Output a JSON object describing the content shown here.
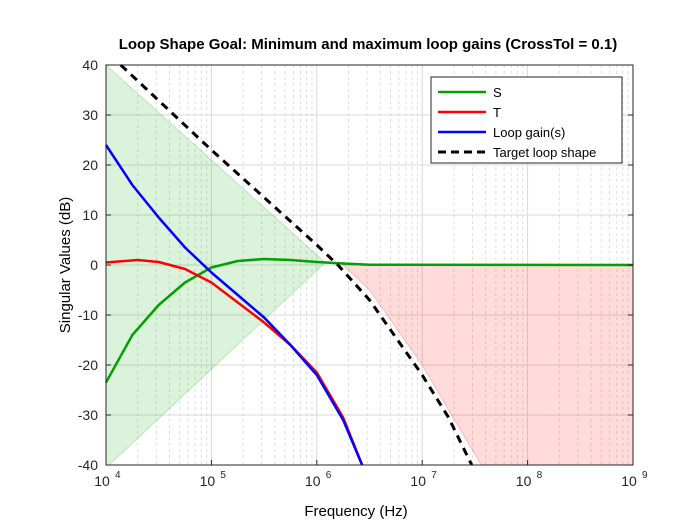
{
  "chart_data": {
    "type": "line",
    "title": "Loop Shape Goal: Minimum and maximum loop gains (CrossTol = 0.1)",
    "xlabel": "Frequency (Hz)",
    "ylabel": "Singular Values (dB)",
    "xscale": "log",
    "xlim": [
      10000,
      1000000000
    ],
    "ylim": [
      -40,
      40
    ],
    "grid": true,
    "xticks": [
      {
        "v": 4,
        "label": "10",
        "exp": "4"
      },
      {
        "v": 5,
        "label": "10",
        "exp": "5"
      },
      {
        "v": 6,
        "label": "10",
        "exp": "6"
      },
      {
        "v": 7,
        "label": "10",
        "exp": "7"
      },
      {
        "v": 8,
        "label": "10",
        "exp": "8"
      },
      {
        "v": 9,
        "label": "10",
        "exp": "9"
      }
    ],
    "yticks": [
      -40,
      -30,
      -20,
      -10,
      0,
      10,
      20,
      30,
      40
    ],
    "legend_position": "top-right",
    "series": [
      {
        "name": "S",
        "color": "#00a000",
        "style": "solid",
        "log10x": [
          4,
          4.25,
          4.5,
          4.75,
          5,
          5.25,
          5.5,
          5.75,
          6,
          6.25,
          6.5,
          9
        ],
        "y": [
          -23.5,
          -14,
          -8,
          -3.5,
          -0.5,
          0.8,
          1.2,
          1,
          0.6,
          0.3,
          0.05,
          0
        ]
      },
      {
        "name": "T",
        "color": "#ff0000",
        "style": "solid",
        "log10x": [
          4,
          4.3,
          4.5,
          4.75,
          5,
          5.25,
          5.5,
          5.75,
          6,
          6.25,
          6.43
        ],
        "y": [
          0.5,
          1,
          0.6,
          -0.8,
          -3.5,
          -7.5,
          -11.5,
          -16,
          -21.5,
          -30.5,
          -40
        ]
      },
      {
        "name": "Loop gain(s)",
        "color": "#0000ff",
        "style": "solid",
        "log10x": [
          4,
          4.25,
          4.5,
          4.75,
          5,
          5.25,
          5.5,
          5.75,
          6,
          6.25,
          6.43
        ],
        "y": [
          24,
          16,
          9.5,
          3.5,
          -1.5,
          -6,
          -10.5,
          -16,
          -22,
          -31,
          -40
        ]
      },
      {
        "name": "Target loop shape",
        "color": "#000000",
        "style": "dashed",
        "log10x": [
          4.14,
          5,
          5.5,
          6,
          6.2,
          6.5,
          7,
          7.25,
          7.47
        ],
        "y": [
          40,
          23,
          13.5,
          4,
          0,
          -7,
          -22,
          -30.5,
          -40
        ]
      }
    ],
    "regions": [
      {
        "name": "min-gain-region",
        "color": "#00a000",
        "log10x": [
          4,
          6.08,
          4.03,
          4
        ],
        "y": [
          40,
          0.5,
          -40,
          -40
        ]
      },
      {
        "name": "max-gain-region",
        "color": "#ff0000",
        "log10x": [
          6.25,
          6.5,
          7,
          7.25,
          7.56,
          9,
          9
        ],
        "y": [
          0,
          -5,
          -20,
          -29,
          -40,
          -40,
          0
        ]
      }
    ]
  }
}
